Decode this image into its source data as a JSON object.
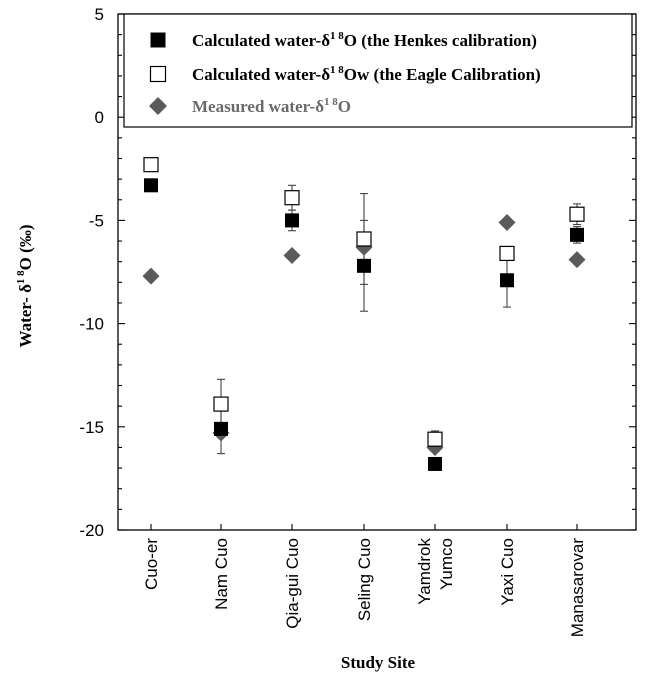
{
  "chart_data": {
    "type": "scatter",
    "title": "",
    "xlabel": "Study Site",
    "ylabel": {
      "prefix": "Water- δ",
      "sup": "1 8",
      "suffix": "O (‰)"
    },
    "categories": [
      "Cuo-er",
      "Nam Cuo",
      "Qia-gui Cuo",
      "Seling Cuo",
      "Yamdrok Yumco",
      "Yaxi Cuo",
      "Manasarovar"
    ],
    "category_labels": [
      [
        "Cuo-er"
      ],
      [
        "Nam Cuo"
      ],
      [
        "Qia-gui Cuo"
      ],
      [
        "Seling Cuo"
      ],
      [
        "Yamdrok",
        "Yumco"
      ],
      [
        "Yaxi Cuo"
      ],
      [
        "Manasarovar"
      ]
    ],
    "ylim": [
      -20,
      5
    ],
    "yticks": [
      5,
      0,
      -5,
      -10,
      -15,
      -20
    ],
    "ytick_labels": [
      "5",
      "0",
      "-5",
      "-10",
      "-15",
      "-20"
    ],
    "grid": false,
    "legend_position": "top-right",
    "series": [
      {
        "name": "Calculated water-δ1 8O (the Henkes calibration)",
        "legend": {
          "prefix": "Calculated water-δ",
          "sup": "1 8",
          "suffix": "O (the Henkes calibration)"
        },
        "marker": "filled-square",
        "values": [
          -3.3,
          -15.1,
          -5.0,
          -7.2,
          -16.8,
          -7.9,
          -5.7
        ],
        "error": [
          null,
          1.2,
          0.5,
          2.2,
          0.3,
          1.3,
          0.4
        ]
      },
      {
        "name": "Calculated water-δ1 8Ow (the Eagle Calibration)",
        "legend": {
          "prefix": "Calculated water-δ",
          "sup": "1 8",
          "suffix": "Ow (the Eagle Calibration)"
        },
        "marker": "open-square",
        "values": [
          -2.3,
          -13.9,
          -3.9,
          -5.9,
          -15.6,
          -6.6,
          -4.7
        ],
        "error": [
          null,
          1.2,
          0.6,
          2.2,
          0.4,
          0.0,
          0.5
        ]
      },
      {
        "name": "Measured water-δ1 8O",
        "legend": {
          "prefix": "Measured water-δ",
          "sup": "1 8",
          "suffix": "O"
        },
        "marker": "diamond",
        "values": [
          -7.7,
          -15.3,
          -6.7,
          -6.3,
          -16.0,
          -5.1,
          -6.9
        ],
        "error": [
          null,
          null,
          null,
          null,
          null,
          null,
          null
        ]
      }
    ],
    "colors": {
      "henkes": "#000000",
      "eagle_edge": "#000000",
      "eagle_fill": "#ffffff",
      "measured": "#5a5a5a",
      "measured_legend_text": "#6a6a6a"
    }
  }
}
